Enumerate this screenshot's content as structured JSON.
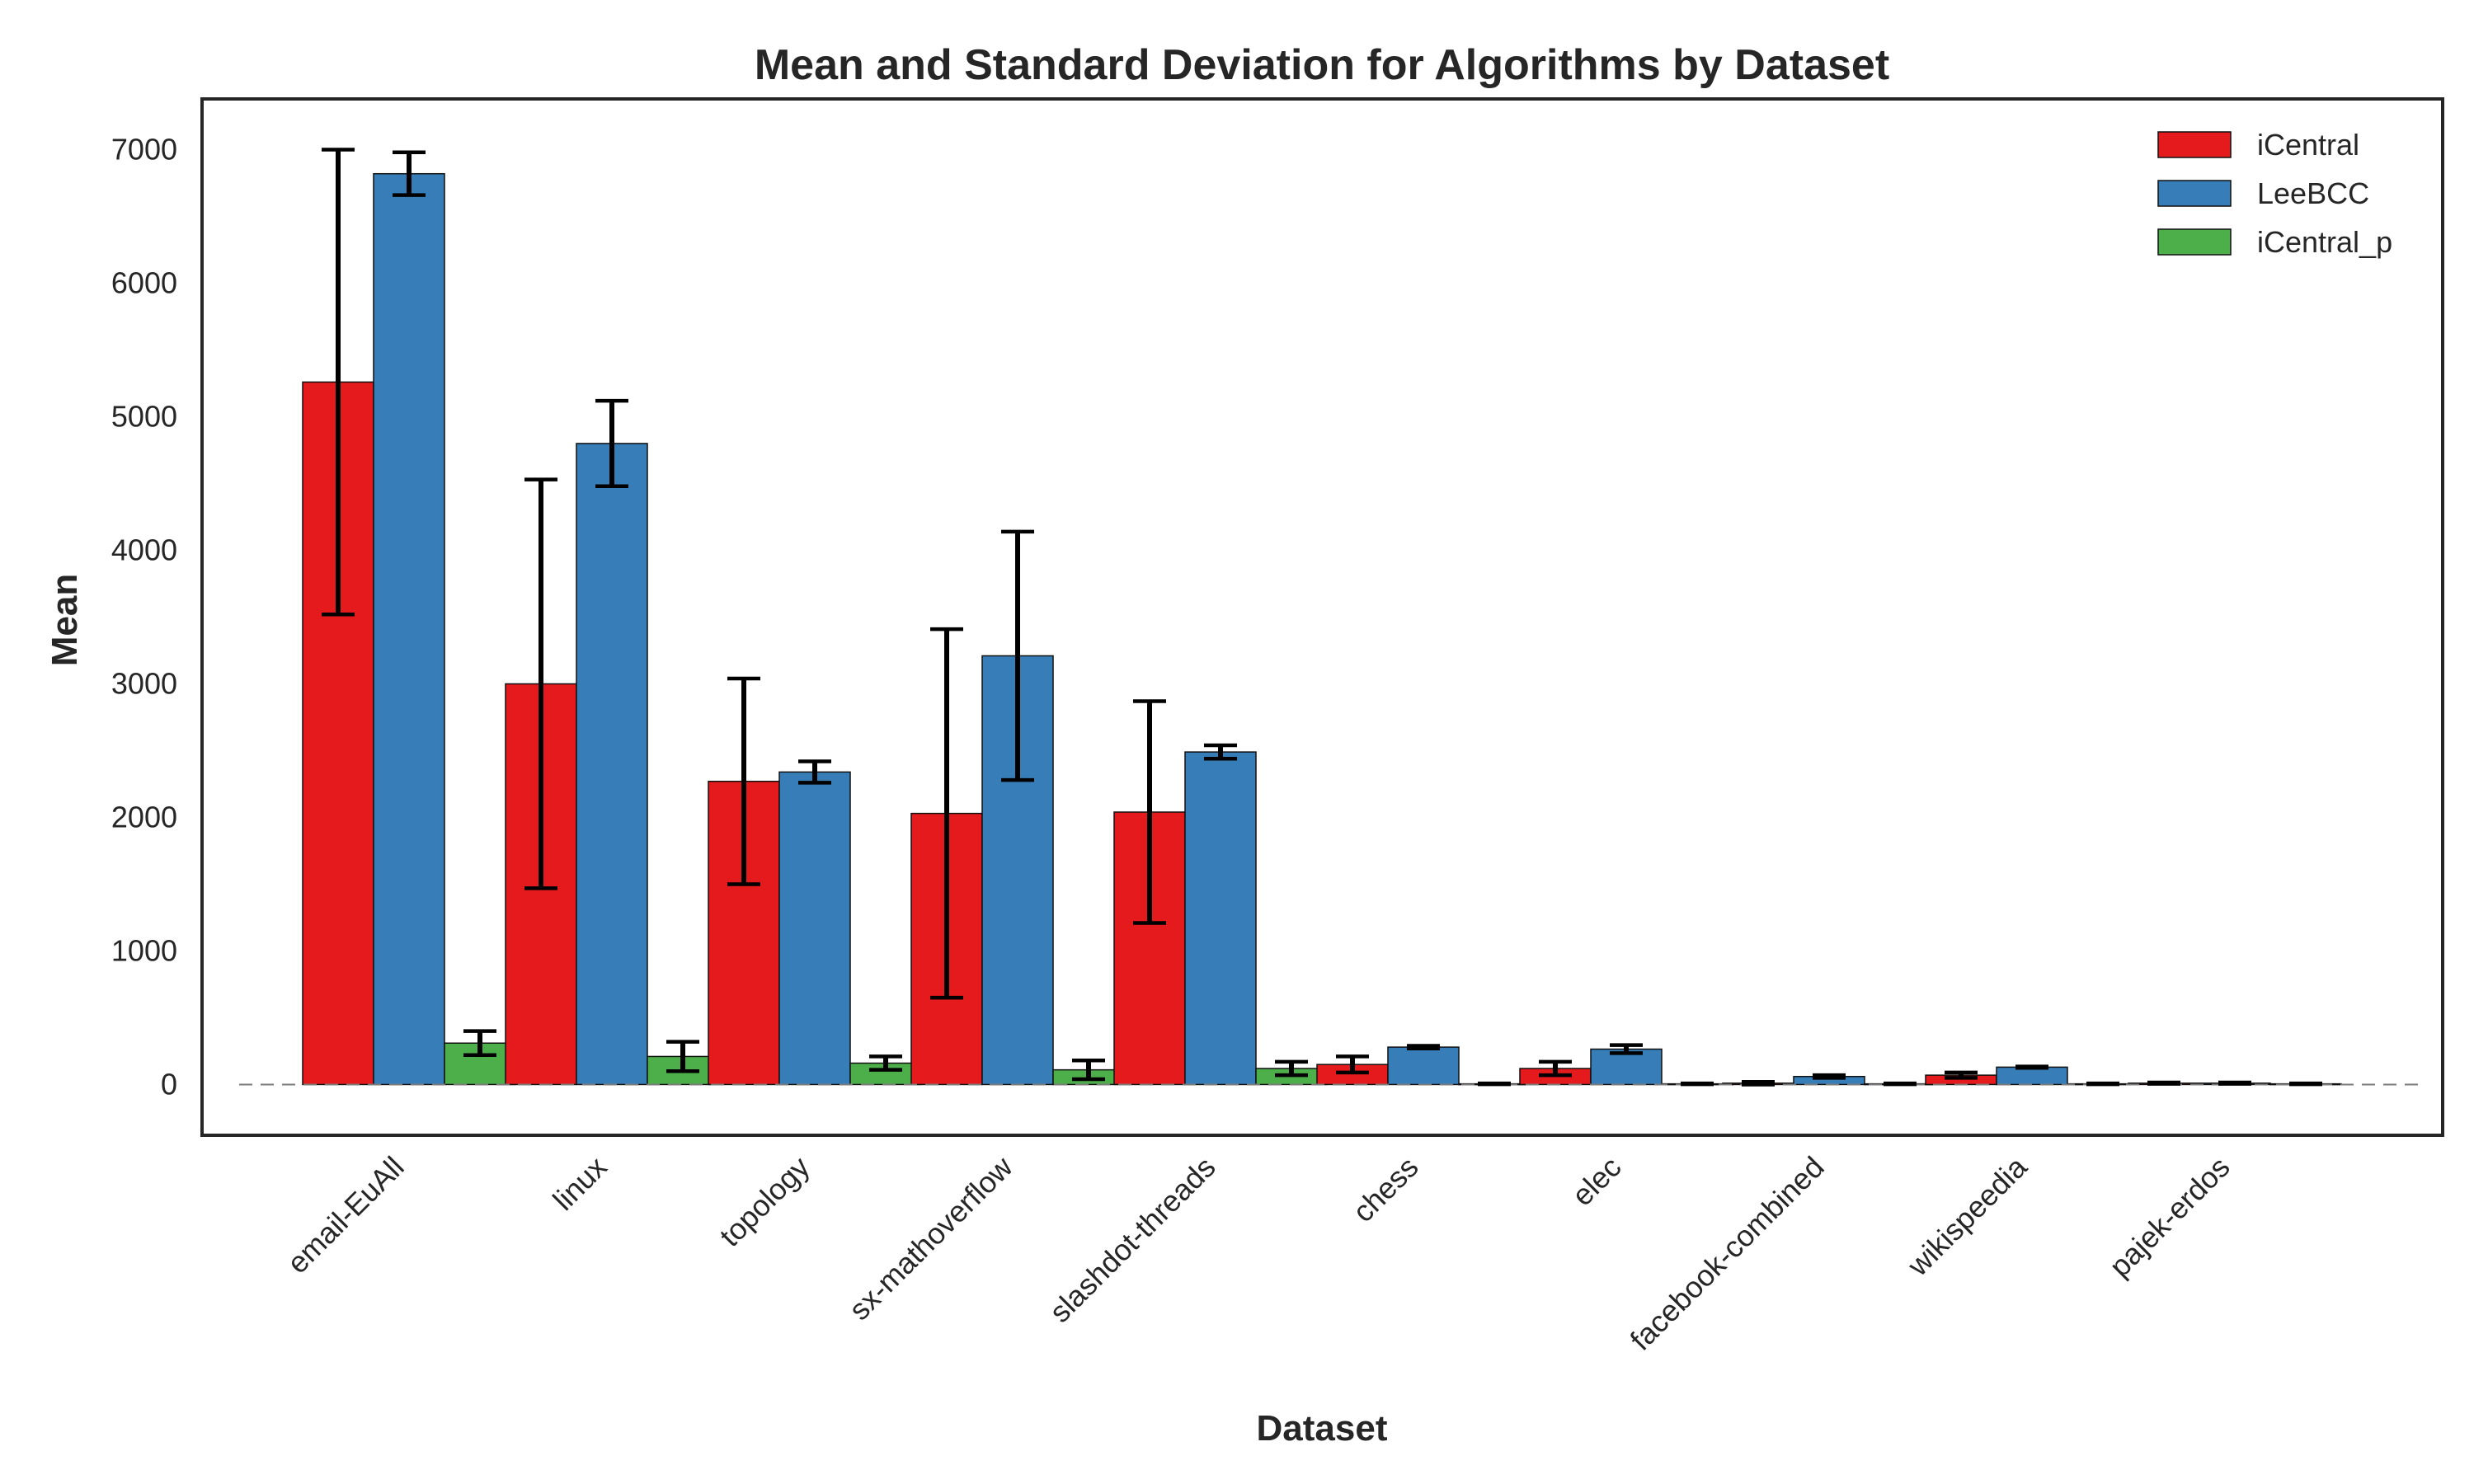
{
  "chart_data": {
    "type": "bar",
    "title": "Mean and Standard Deviation for Algorithms by Dataset",
    "xlabel": "Dataset",
    "ylabel": "Mean",
    "ylim": [
      -380,
      7380
    ],
    "yticks": [
      0,
      1000,
      2000,
      3000,
      4000,
      5000,
      6000,
      7000
    ],
    "grid": false,
    "legend_position": "top-right",
    "reference_line": 0,
    "categories": [
      "email-EuAll",
      "linux",
      "topology",
      "sx-mathoverflow",
      "slashdot-threads",
      "chess",
      "elec",
      "facebook-combined",
      "wikispeedia",
      "pajek-erdos"
    ],
    "series": [
      {
        "name": "iCentral",
        "color": "#e41a1c",
        "values": [
          5260,
          3000,
          2270,
          2030,
          2040,
          150,
          120,
          10,
          70,
          10
        ],
        "std": [
          1740,
          1530,
          770,
          1380,
          830,
          60,
          50,
          10,
          20,
          5
        ]
      },
      {
        "name": "LeeBCC",
        "color": "#377eb8",
        "values": [
          6820,
          4800,
          2340,
          3210,
          2490,
          280,
          265,
          60,
          130,
          10
        ],
        "std": [
          160,
          320,
          80,
          930,
          50,
          10,
          30,
          10,
          5,
          5
        ]
      },
      {
        "name": "iCentral_p",
        "color": "#4daf4a",
        "values": [
          310,
          210,
          160,
          110,
          120,
          5,
          5,
          5,
          5,
          5
        ],
        "std": [
          90,
          110,
          50,
          70,
          50,
          3,
          3,
          3,
          3,
          3
        ]
      }
    ]
  }
}
